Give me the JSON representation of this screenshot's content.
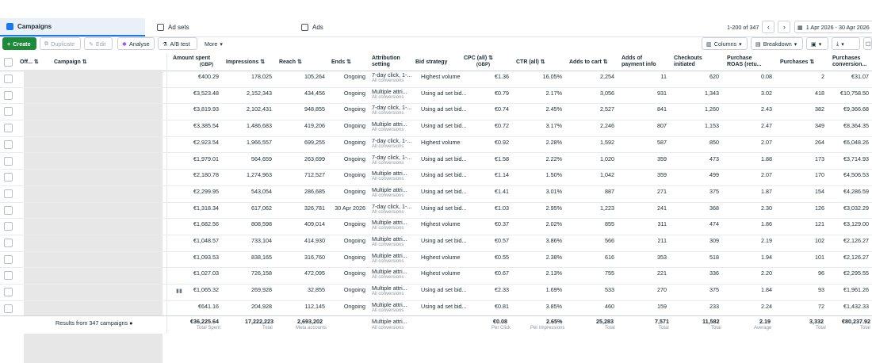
{
  "tabs": [
    {
      "label": "Campaigns",
      "icon": "campaigns-icon"
    },
    {
      "label": "Ad sets",
      "icon": "adsets-grid-icon"
    },
    {
      "label": "Ads",
      "icon": "ads-square-icon"
    }
  ],
  "pager": {
    "range": "1-200 of 347"
  },
  "date_range": "1 Apr 2026 - 30 Apr 2026",
  "toolbar": {
    "create": "Create",
    "duplicate": "Duplicate",
    "edit": "Edit",
    "analyse": "Analyse",
    "ab_test": "A/B test",
    "more": "More",
    "columns": "Columns",
    "breakdown": "Breakdown"
  },
  "headers": {
    "off": "Off...",
    "campaign": "Campaign",
    "amount_spent": "Amount spent",
    "amount_spent_sub": "(GBP)",
    "impressions": "Impressions",
    "reach": "Reach",
    "ends": "Ends",
    "attribution": "Attribution setting",
    "bid": "Bid strategy",
    "cpc": "CPC (all)",
    "cpc_sub": "(GBP)",
    "ctr": "CTR (all)",
    "atc": "Adds to cart",
    "api": "Adds of payment info",
    "checkouts": "Checkouts initiated",
    "roas": "Purchase ROAS (retu...",
    "purchases": "Purchases",
    "pconv": "Purchases conversion..."
  },
  "rows": [
    {
      "spent": "€400.29",
      "imp": "178,025",
      "reach": "105,264",
      "ends": "Ongoing",
      "attr": "7-day click, 1-...",
      "attr_sub": "All conversions",
      "bid": "Highest volume",
      "cpc": "€1.36",
      "ctr": "16.05%",
      "atc": "2,254",
      "api": "11",
      "chk": "620",
      "roas": "0.08",
      "pur": "2",
      "pcv": "€31.07"
    },
    {
      "spent": "€3,523.48",
      "imp": "2,152,343",
      "reach": "434,456",
      "ends": "Ongoing",
      "attr": "Multiple attri...",
      "attr_sub": "All conversions",
      "bid": "Using ad set bid...",
      "cpc": "€0.79",
      "ctr": "2.17%",
      "atc": "3,056",
      "api": "931",
      "chk": "1,343",
      "roas": "3.02",
      "pur": "418",
      "pcv": "€10,758.50"
    },
    {
      "spent": "€3,819.93",
      "imp": "2,102,431",
      "reach": "948,855",
      "ends": "Ongoing",
      "attr": "7-day click, 1-...",
      "attr_sub": "All conversions",
      "bid": "Using ad set bid...",
      "cpc": "€0.74",
      "ctr": "2.45%",
      "atc": "2,527",
      "api": "841",
      "chk": "1,260",
      "roas": "2.43",
      "pur": "382",
      "pcv": "€9,366.68"
    },
    {
      "spent": "€3,385.54",
      "imp": "1,486,683",
      "reach": "419,206",
      "ends": "Ongoing",
      "attr": "Multiple attri...",
      "attr_sub": "All conversions",
      "bid": "Using ad set bid...",
      "cpc": "€0.72",
      "ctr": "3.17%",
      "atc": "2,246",
      "api": "807",
      "chk": "1,153",
      "roas": "2.47",
      "pur": "349",
      "pcv": "€8,364.35"
    },
    {
      "spent": "€2,923.54",
      "imp": "1,966,557",
      "reach": "699,255",
      "ends": "Ongoing",
      "attr": "7-day click, 1-...",
      "attr_sub": "All conversions",
      "bid": "Highest volume",
      "cpc": "€0.92",
      "ctr": "2.28%",
      "atc": "1,592",
      "api": "587",
      "chk": "850",
      "roas": "2.07",
      "pur": "264",
      "pcv": "€6,048.26"
    },
    {
      "spent": "€1,979.01",
      "imp": "564,659",
      "reach": "263,699",
      "ends": "Ongoing",
      "attr": "7-day click, 1-...",
      "attr_sub": "All conversions",
      "bid": "Using ad set bid...",
      "cpc": "€1.58",
      "ctr": "2.22%",
      "atc": "1,020",
      "api": "359",
      "chk": "473",
      "roas": "1.88",
      "pur": "173",
      "pcv": "€3,714.93"
    },
    {
      "spent": "€2,180.78",
      "imp": "1,274,963",
      "reach": "712,527",
      "ends": "Ongoing",
      "attr": "Multiple attri...",
      "attr_sub": "All conversions",
      "bid": "Using ad set bid...",
      "cpc": "€1.14",
      "ctr": "1.50%",
      "atc": "1,042",
      "api": "359",
      "chk": "499",
      "roas": "2.07",
      "pur": "170",
      "pcv": "€4,506.53"
    },
    {
      "spent": "€2,299.95",
      "imp": "543,054",
      "reach": "286,685",
      "ends": "Ongoing",
      "attr": "Multiple attri...",
      "attr_sub": "All conversions",
      "bid": "Using ad set bid...",
      "cpc": "€1.41",
      "ctr": "3.01%",
      "atc": "887",
      "api": "271",
      "chk": "375",
      "roas": "1.87",
      "pur": "154",
      "pcv": "€4,286.59"
    },
    {
      "spent": "€1,318.34",
      "imp": "617,062",
      "reach": "326,781",
      "ends": "30 Apr 2026",
      "attr": "7-day click, 1-...",
      "attr_sub": "All conversions",
      "bid": "Using ad set bid...",
      "cpc": "€1.03",
      "ctr": "2.95%",
      "atc": "1,223",
      "api": "241",
      "chk": "368",
      "roas": "2.30",
      "pur": "126",
      "pcv": "€3,032.29"
    },
    {
      "spent": "€1,682.56",
      "imp": "808,598",
      "reach": "409,014",
      "ends": "Ongoing",
      "attr": "Multiple attri...",
      "attr_sub": "All conversions",
      "bid": "Highest volume",
      "cpc": "€0.37",
      "ctr": "2.02%",
      "atc": "855",
      "api": "311",
      "chk": "474",
      "roas": "1.86",
      "pur": "121",
      "pcv": "€3,129.00"
    },
    {
      "spent": "€1,048.57",
      "imp": "733,104",
      "reach": "414,930",
      "ends": "Ongoing",
      "attr": "Multiple attri...",
      "attr_sub": "All conversions",
      "bid": "Using ad set bid...",
      "cpc": "€0.57",
      "ctr": "3.86%",
      "atc": "566",
      "api": "211",
      "chk": "309",
      "roas": "2.19",
      "pur": "102",
      "pcv": "€2,126.27"
    },
    {
      "spent": "€1,093.53",
      "imp": "838,165",
      "reach": "316,760",
      "ends": "Ongoing",
      "attr": "Multiple attri...",
      "attr_sub": "All conversions",
      "bid": "Highest volume",
      "cpc": "€0.55",
      "ctr": "2.38%",
      "atc": "616",
      "api": "353",
      "chk": "518",
      "roas": "1.94",
      "pur": "101",
      "pcv": "€2,126.27"
    },
    {
      "spent": "€1,027.03",
      "imp": "726,158",
      "reach": "472,095",
      "ends": "Ongoing",
      "attr": "Multiple attri...",
      "attr_sub": "All conversions",
      "bid": "Highest volume",
      "cpc": "€0.67",
      "ctr": "2.13%",
      "atc": "755",
      "api": "221",
      "chk": "336",
      "roas": "2.20",
      "pur": "96",
      "pcv": "€2,295.55"
    },
    {
      "spent": "€1,065.32",
      "imp": "269,928",
      "reach": "32,855",
      "ends": "Ongoing",
      "attr": "Multiple attri...",
      "attr_sub": "All conversions",
      "bid": "Using ad set bid...",
      "cpc": "€2.33",
      "ctr": "1.69%",
      "atc": "533",
      "api": "270",
      "chk": "375",
      "roas": "1.84",
      "pur": "93",
      "pcv": "€1,961.26"
    },
    {
      "spent": "€641.16",
      "imp": "204,928",
      "reach": "112,145",
      "ends": "Ongoing",
      "attr": "Multiple attri...",
      "attr_sub": "All conversions",
      "bid": "Using ad set bid...",
      "cpc": "€0.81",
      "ctr": "3.85%",
      "atc": "460",
      "api": "159",
      "chk": "233",
      "roas": "2.24",
      "pur": "72",
      "pcv": "€1,432.33"
    }
  ],
  "footer": {
    "results": "Results from 347 campaigns",
    "spent": "€36,225.64",
    "spent_lab": "Total Spent",
    "imp": "17,222,223",
    "imp_lab": "Total",
    "reach": "2,693,202",
    "reach_lab": "Meta accounts",
    "attr": "Multiple attri...",
    "attr_lab": "All conversions",
    "cpc": "€0.08",
    "cpc_lab": "Per Click",
    "ctr": "2.65%",
    "ctr_lab": "Per Impressions",
    "atc": "25,283",
    "atc_lab": "Total",
    "api": "7,571",
    "api_lab": "Total",
    "chk": "11,582",
    "chk_lab": "Total",
    "roas": "2.19",
    "roas_lab": "Average",
    "pur": "3,332",
    "pur_lab": "Total",
    "pcv": "€80,237.92",
    "pcv_lab": "Total"
  },
  "colors": {
    "accent": "#1877f2",
    "create": "#1d8a3a"
  }
}
